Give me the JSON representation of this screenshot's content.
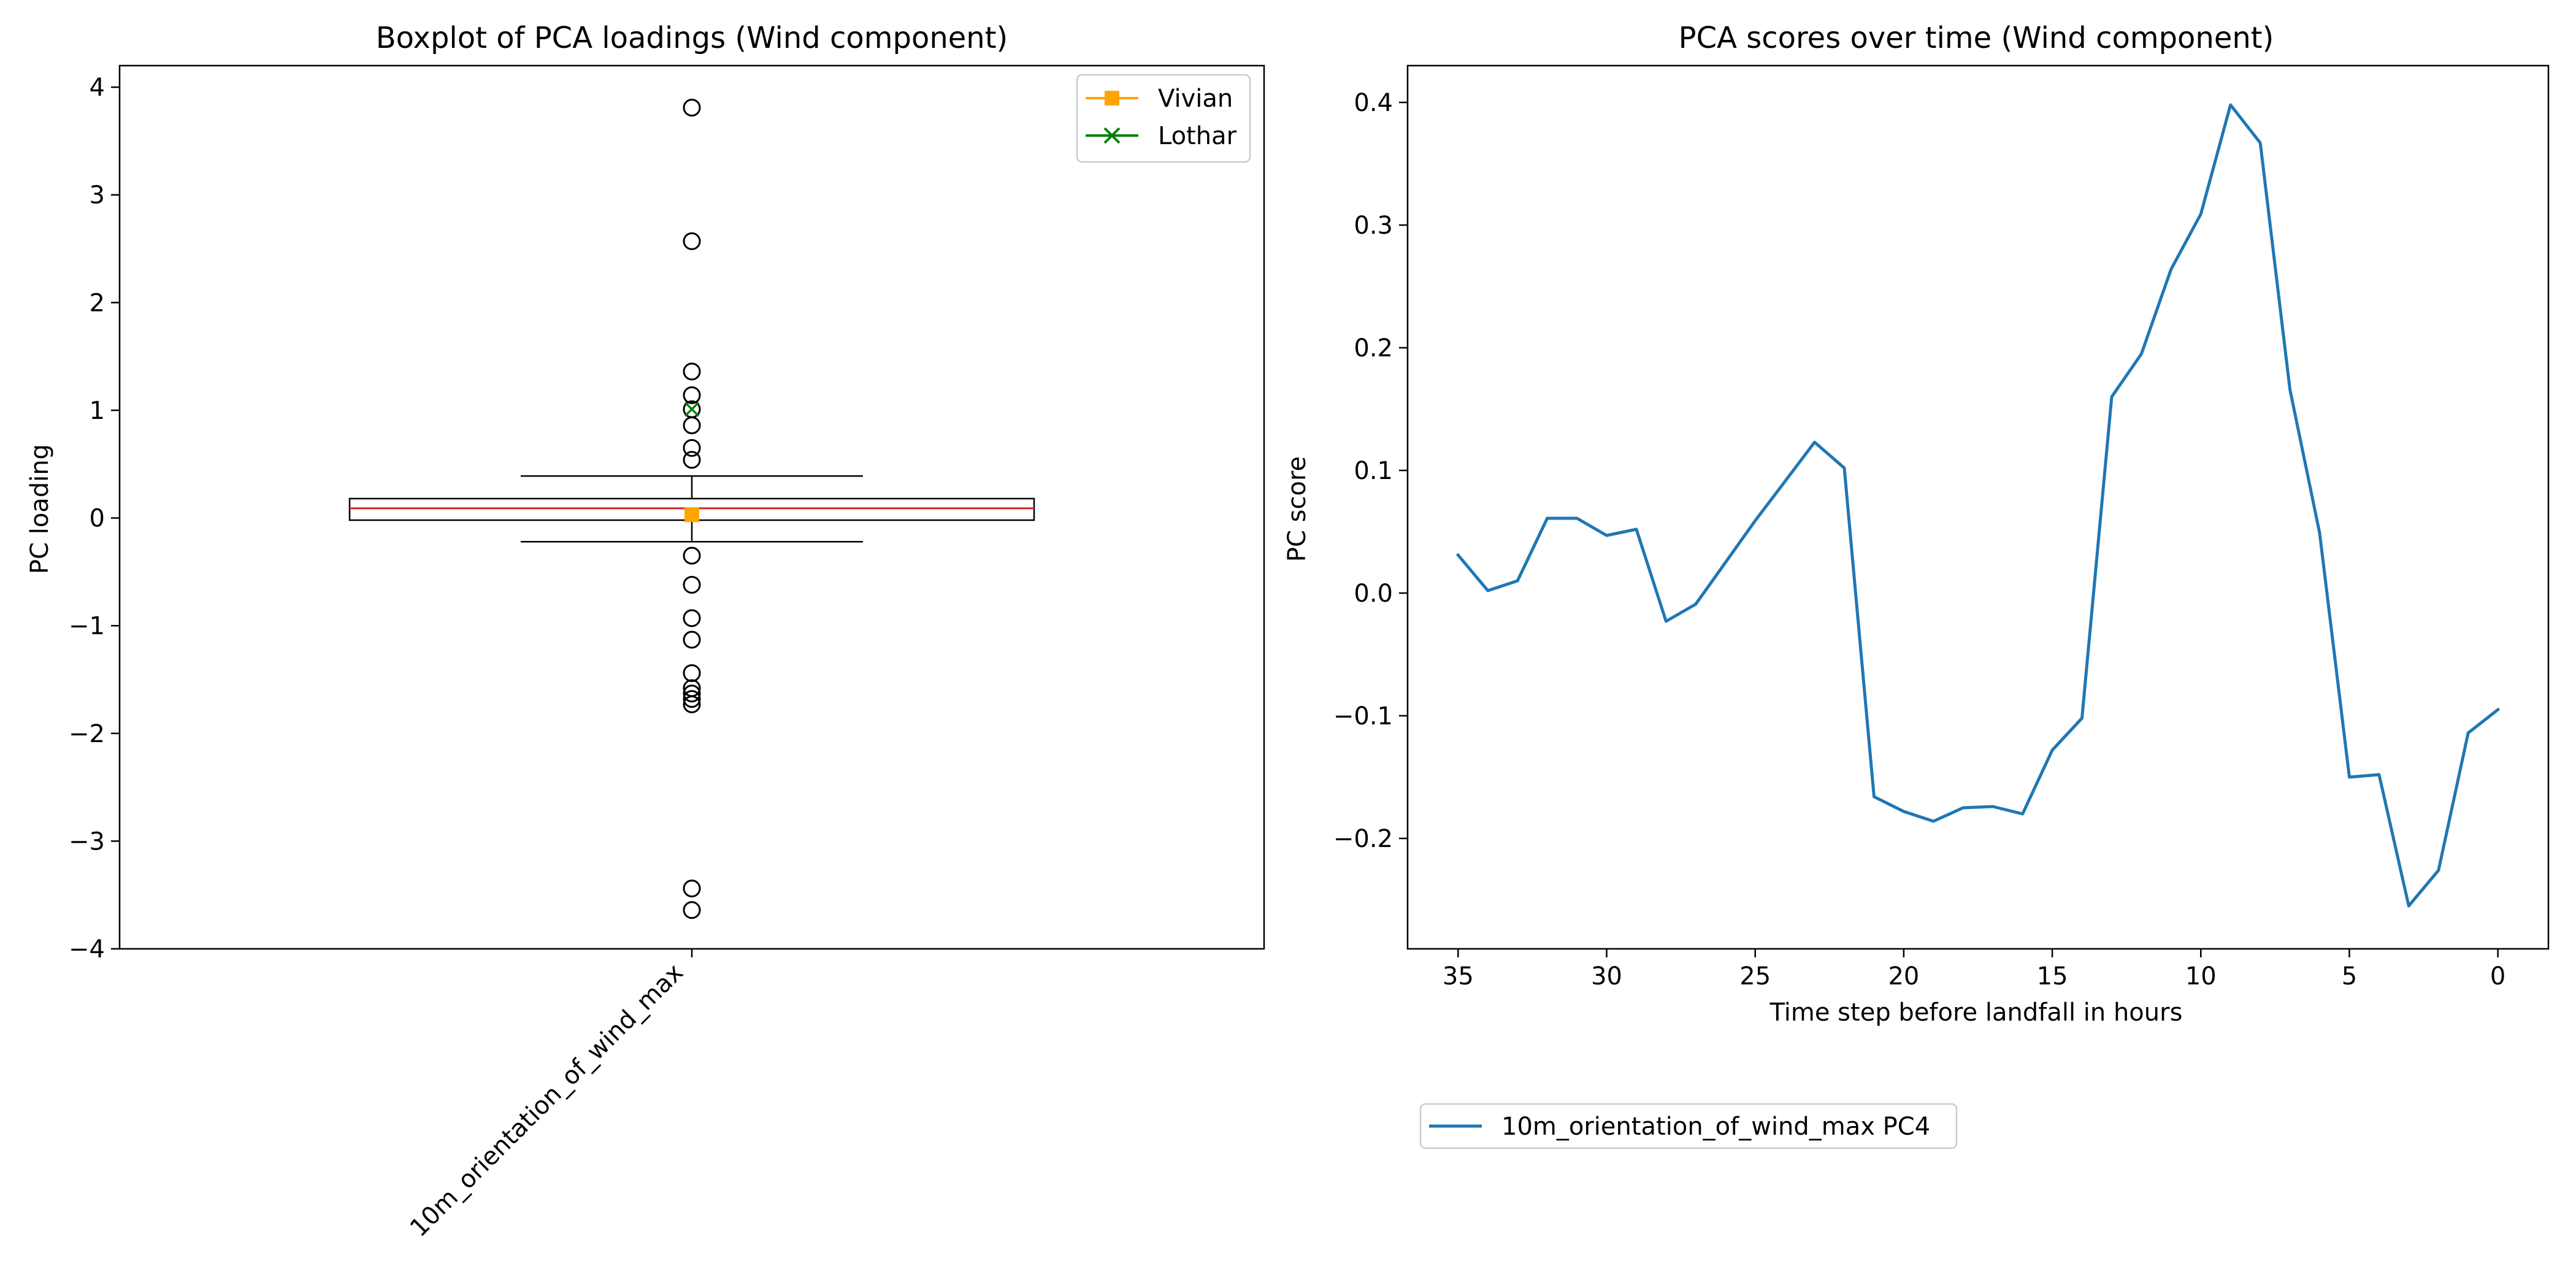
{
  "colors": {
    "series_line": "#1f77b4",
    "median": "#d62728",
    "vivian": "#ffa500",
    "lothar": "#008000",
    "axis": "#000000",
    "legend_edge": "#cccccc"
  },
  "chart_data": [
    {
      "type": "box",
      "title": "Boxplot of PCA loadings (Wind component)",
      "xlabel": "",
      "ylabel": "PC loading",
      "categories": [
        "10m_orientation_of_wind_max"
      ],
      "xtick_rotation": 45,
      "ylim": [
        -4,
        4.2
      ],
      "yticks": [
        -4,
        -3,
        -2,
        -1,
        0,
        1,
        2,
        3,
        4
      ],
      "ytick_labels": [
        "−4",
        "−3",
        "−2",
        "−1",
        "0",
        "1",
        "2",
        "3",
        "4"
      ],
      "box": {
        "q1": -0.02,
        "median": 0.09,
        "q3": 0.18,
        "whisker_low": -0.22,
        "whisker_high": 0.39
      },
      "outliers": [
        3.81,
        2.57,
        1.36,
        1.14,
        1.01,
        0.86,
        0.65,
        0.54,
        -0.35,
        -0.62,
        -0.93,
        -1.13,
        -1.44,
        -1.58,
        -1.63,
        -1.68,
        -1.73,
        -3.44,
        -3.64
      ],
      "markers": [
        {
          "name": "Vivian",
          "value": 0.03,
          "marker": "square",
          "color": "#ffa500"
        },
        {
          "name": "Lothar",
          "value": 1.01,
          "marker": "x",
          "color": "#008000"
        }
      ],
      "legend": {
        "position": "upper right",
        "entries": [
          {
            "label": "Vivian",
            "marker": "square",
            "color": "#ffa500"
          },
          {
            "label": "Lothar",
            "marker": "x",
            "color": "#008000"
          }
        ]
      }
    },
    {
      "type": "line",
      "title": "PCA scores over time (Wind component)",
      "xlabel": "Time step before landfall in hours",
      "ylabel": "PC score",
      "x_inverted": true,
      "xlim": [
        36.7,
        -1.7
      ],
      "ylim": [
        -0.29,
        0.43
      ],
      "xticks": [
        35,
        30,
        25,
        20,
        15,
        10,
        5,
        0
      ],
      "yticks": [
        -0.2,
        -0.1,
        0.0,
        0.1,
        0.2,
        0.3,
        0.4
      ],
      "ytick_labels": [
        "−0.2",
        "−0.1",
        "0.0",
        "0.1",
        "0.2",
        "0.3",
        "0.4"
      ],
      "series": [
        {
          "name": "10m_orientation_of_wind_max PC4",
          "color": "#1f77b4",
          "x": [
            35,
            34,
            33,
            32,
            31,
            30,
            29,
            28,
            27,
            26,
            25,
            24,
            23,
            22,
            21,
            20,
            19,
            18,
            17,
            16,
            15,
            14,
            13,
            12,
            11,
            10,
            9,
            8,
            7,
            6,
            5,
            4,
            3,
            2,
            1,
            0
          ],
          "y": [
            0.031,
            0.002,
            0.01,
            0.061,
            0.061,
            0.047,
            0.052,
            -0.023,
            -0.009,
            0.025,
            0.059,
            0.091,
            0.123,
            0.102,
            -0.166,
            -0.178,
            -0.186,
            -0.175,
            -0.174,
            -0.18,
            -0.128,
            -0.102,
            0.16,
            0.195,
            0.264,
            0.309,
            0.398,
            0.367,
            0.166,
            0.049,
            -0.15,
            -0.148,
            -0.255,
            -0.226,
            -0.114,
            -0.095
          ]
        }
      ],
      "legend": {
        "position": "below plot, left",
        "entries": [
          {
            "label": "10m_orientation_of_wind_max PC4",
            "color": "#1f77b4"
          }
        ]
      }
    }
  ]
}
